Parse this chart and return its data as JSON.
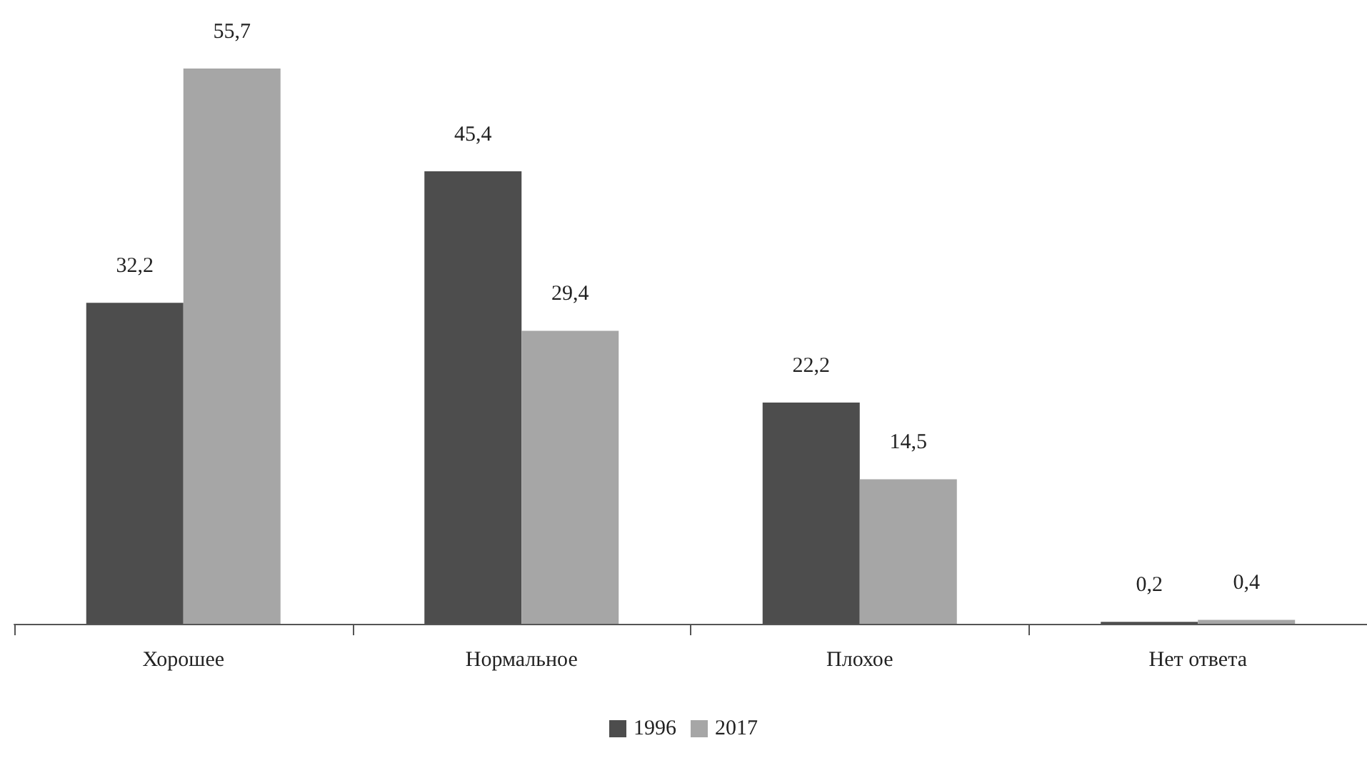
{
  "chart_data": {
    "type": "bar",
    "categories": [
      "Хорошее",
      "Нормальное",
      "Плохое",
      "Нет ответа"
    ],
    "series": [
      {
        "name": "1996",
        "color": "#4d4d4d",
        "values": [
          32.2,
          45.4,
          22.2,
          0.2
        ],
        "value_labels": [
          "32,2",
          "45,4",
          "22,2",
          "0,2"
        ]
      },
      {
        "name": "2017",
        "color": "#a6a6a6",
        "values": [
          55.7,
          29.4,
          14.5,
          0.4
        ],
        "value_labels": [
          "55,7",
          "29,4",
          "14,5",
          "0,4"
        ]
      }
    ],
    "legend": "bottom"
  }
}
